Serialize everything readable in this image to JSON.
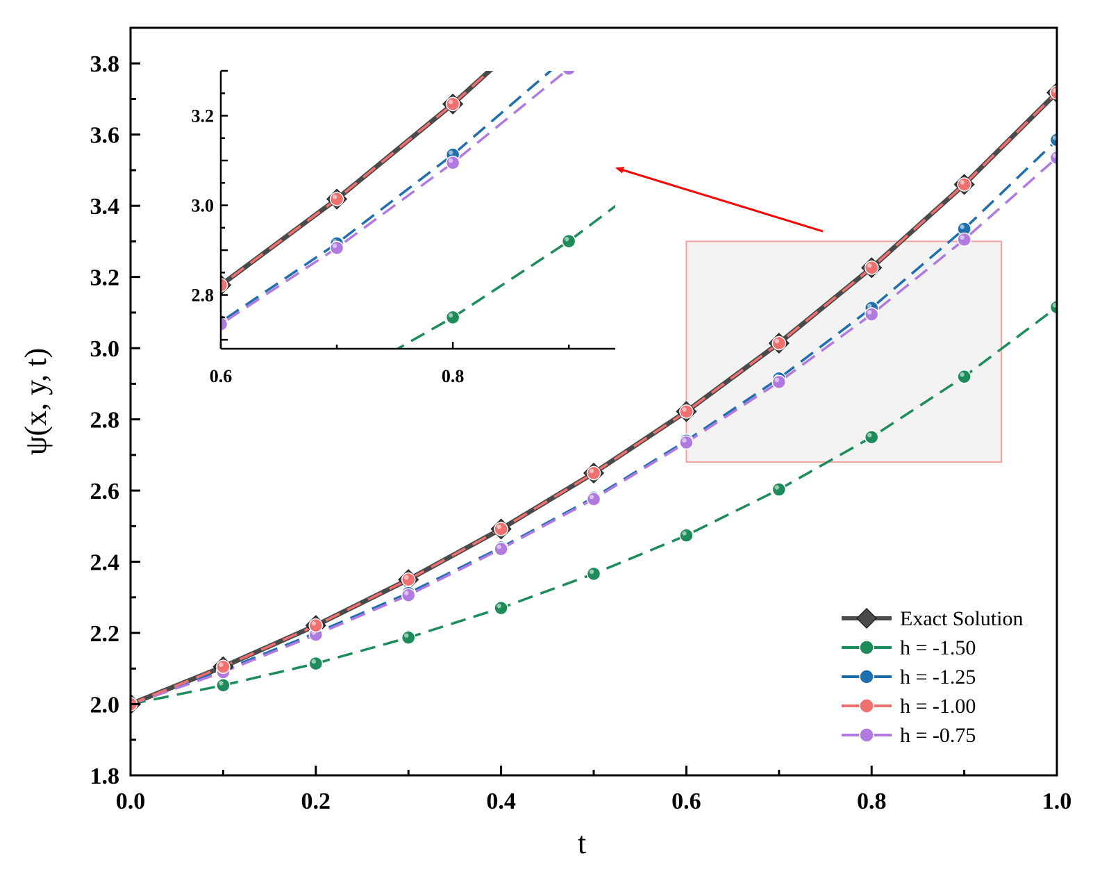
{
  "chart_data": {
    "type": "line",
    "title": "",
    "xlabel": "t",
    "ylabel": "ψ(x, y, t)",
    "xlim": [
      0.0,
      1.0
    ],
    "ylim": [
      1.8,
      3.9
    ],
    "xticks": [
      "0.0",
      "0.2",
      "0.4",
      "0.6",
      "0.8",
      "1.0"
    ],
    "yticks": [
      "1.8",
      "2.0",
      "2.2",
      "2.4",
      "2.6",
      "2.8",
      "3.0",
      "3.2",
      "3.4",
      "3.6",
      "3.8"
    ],
    "x": [
      0.0,
      0.1,
      0.2,
      0.3,
      0.4,
      0.5,
      0.6,
      0.7,
      0.8,
      0.9,
      1.0
    ],
    "series": [
      {
        "name": "Exact Solution",
        "color": "#4a4a4a",
        "marker": "diamond",
        "dash": "solid",
        "values": [
          2.0,
          2.105,
          2.221,
          2.35,
          2.492,
          2.649,
          2.822,
          3.014,
          3.226,
          3.46,
          3.718
        ]
      },
      {
        "name": "h = -1.50",
        "color": "#1e8c5a",
        "marker": "circle",
        "dash": "dashed",
        "values": [
          2.0,
          2.053,
          2.114,
          2.187,
          2.27,
          2.366,
          2.474,
          2.603,
          2.75,
          2.92,
          3.115
        ]
      },
      {
        "name": "h = -1.25",
        "color": "#1f6fad",
        "marker": "circle",
        "dash": "dashed",
        "values": [
          2.0,
          2.095,
          2.2,
          2.312,
          2.44,
          2.58,
          2.74,
          2.915,
          3.113,
          3.335,
          3.585
        ]
      },
      {
        "name": "h = -1.00",
        "color": "#f07070",
        "marker": "circle",
        "dash": "dashed",
        "values": [
          2.0,
          2.105,
          2.221,
          2.35,
          2.492,
          2.649,
          2.822,
          3.014,
          3.226,
          3.46,
          3.718
        ]
      },
      {
        "name": "h = -0.75",
        "color": "#b07ae0",
        "marker": "circle",
        "dash": "dashed",
        "values": [
          2.0,
          2.09,
          2.195,
          2.306,
          2.436,
          2.576,
          2.735,
          2.905,
          3.095,
          3.305,
          3.535
        ]
      }
    ],
    "legend_position": "bottom-right",
    "zoom_region": {
      "xlim": [
        0.6,
        0.94
      ],
      "ylim": [
        2.68,
        3.3
      ]
    },
    "inset": {
      "xlim": [
        0.6,
        0.94
      ],
      "ylim": [
        2.68,
        3.3
      ],
      "xticks": [
        "0.6",
        "0.8"
      ],
      "yticks": [
        "2.8",
        "3.0",
        "3.2"
      ]
    }
  }
}
